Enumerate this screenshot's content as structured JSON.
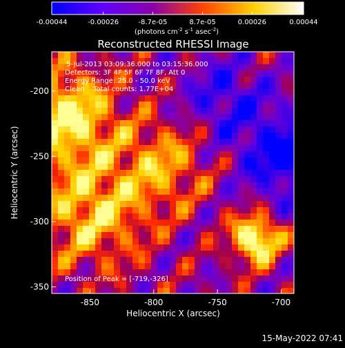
{
  "colorbar": {
    "tick_labels": [
      "-0.00044",
      "-0.00026",
      "-8.7e-05",
      "8.7e-05",
      "0.00026",
      "0.00044"
    ],
    "ticks": [
      -0.00044,
      -0.00026,
      -8.7e-05,
      8.7e-05,
      0.00026,
      0.00044
    ],
    "range": [
      -0.00044,
      0.00044
    ],
    "unit_label_parts": [
      "(photons cm",
      "-2",
      " s",
      "-1",
      " asec",
      "-2",
      ")"
    ],
    "colors": [
      "#0000ff",
      "#6000ff",
      "#8800aa",
      "#ff4400",
      "#ffd000",
      "#ffffff"
    ]
  },
  "chart_data": {
    "type": "heatmap",
    "title": "Reconstructed RHESSI Image",
    "xlabel": "Heliocentric X (arcsec)",
    "ylabel": "Heliocentric Y (arcsec)",
    "xlim": [
      -880,
      -690
    ],
    "ylim": [
      -355,
      -170
    ],
    "x_ticks": [
      -850,
      -800,
      -750,
      -700
    ],
    "x_tick_labels": [
      "-850",
      "-800",
      "-750",
      "-700"
    ],
    "y_ticks": [
      -200,
      -250,
      -300,
      -350
    ],
    "y_tick_labels": [
      "-200",
      "-250",
      "-300",
      "-350"
    ],
    "annotations": [
      "5-Jul-2013 03:09:36.000 to 03:15:36.000",
      "Detectors: 3F 4F 5F 6F 7F 8F, Att 0",
      "Energy Range: 25.0 - 50.0 keV",
      "Clean    Total counts: 1.77E+04"
    ],
    "peak_label": "Position of Peak = [-719,-326]",
    "peak_position": [
      -719,
      -326
    ]
  },
  "footer": {
    "timestamp": "15-May-2022 07:41"
  }
}
